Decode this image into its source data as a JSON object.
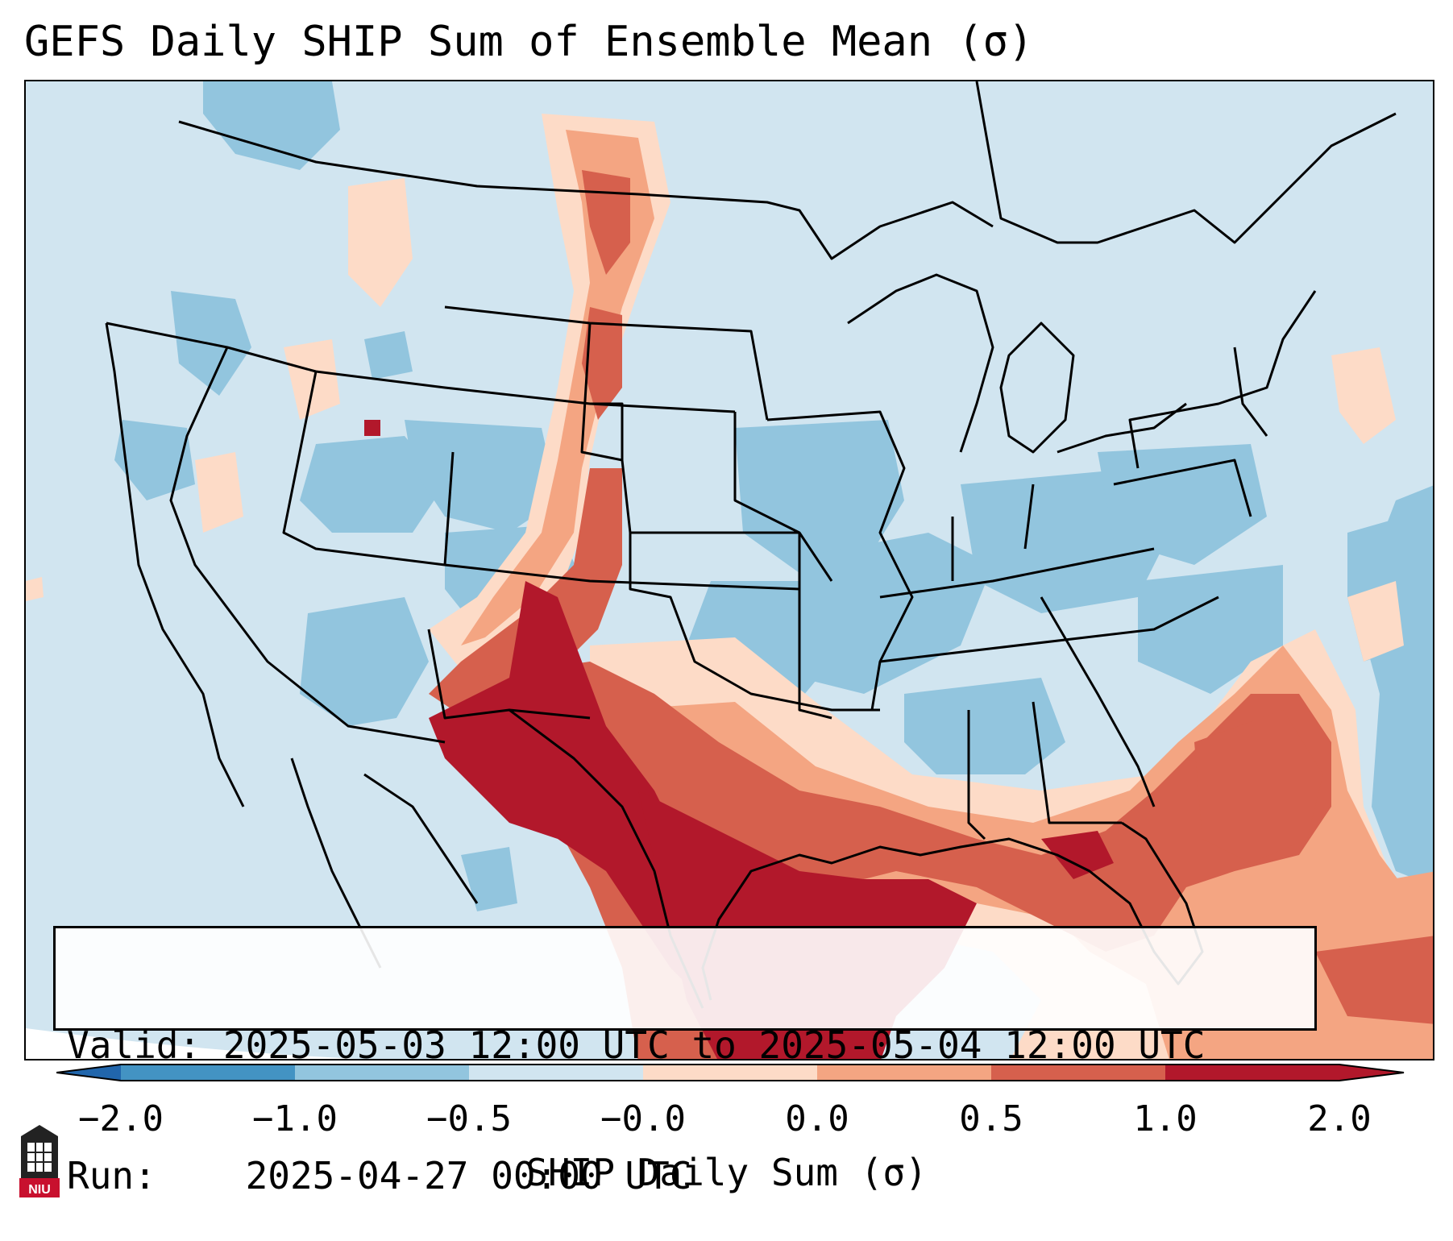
{
  "title": "GEFS Daily SHIP Sum of Ensemble Mean (σ)",
  "info": {
    "valid_label": "Valid:",
    "valid_value": "2025-05-03 12:00 UTC to 2025-05-04 12:00 UTC",
    "run_label": "Run:",
    "run_value": "2025-04-27 00:00 UTC"
  },
  "colorbar": {
    "label": "SHIP Daily Sum (σ)",
    "ticks": [
      "−2.0",
      "−1.0",
      "−0.5",
      "−0.0",
      "0.0",
      "0.5",
      "1.0",
      "2.0"
    ],
    "colors": [
      "#4393c3",
      "#92c5de",
      "#d1e5f0",
      "#fddbc7",
      "#f4a582",
      "#d6604d",
      "#b2182b"
    ],
    "extend_low_color": "#2166ac",
    "extend_high_color": "#b2182b"
  },
  "colors": {
    "background": "#d1e5f0",
    "outline": "#000000"
  },
  "logo": {
    "text": "NIU"
  }
}
